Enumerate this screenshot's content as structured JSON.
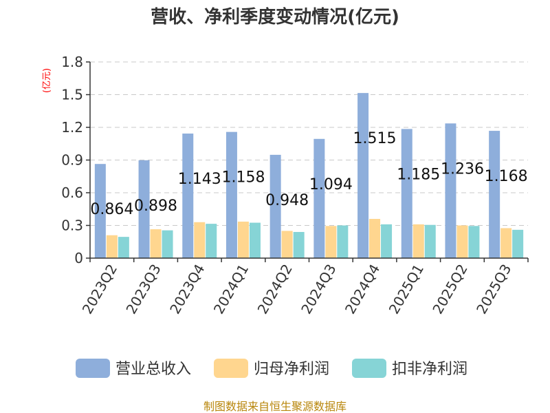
{
  "title": "营收、净利季度变动情况(亿元)",
  "unit": "(亿元)",
  "source": "制图数据来自恒生聚源数据库",
  "chart_data": {
    "type": "bar",
    "title": "营收、净利季度变动情况(亿元)",
    "ylabel": "(亿元)",
    "ylim": [
      0,
      1.8
    ],
    "yticks": [
      "0",
      "0.3",
      "0.6",
      "0.9",
      "1.2",
      "1.5",
      "1.8"
    ],
    "grid": true,
    "legend_position": "bottom",
    "categories": [
      "2023Q2",
      "2023Q3",
      "2023Q4",
      "2024Q1",
      "2024Q2",
      "2024Q3",
      "2024Q4",
      "2025Q1",
      "2025Q2",
      "2025Q3"
    ],
    "series": [
      {
        "name": "营业总收入",
        "color": "#8eaedb",
        "values": [
          0.864,
          0.898,
          1.143,
          1.158,
          0.948,
          1.094,
          1.515,
          1.185,
          1.236,
          1.168
        ]
      },
      {
        "name": "归母净利润",
        "color": "#ffd68f",
        "values": [
          0.21,
          0.265,
          0.33,
          0.335,
          0.25,
          0.295,
          0.36,
          0.31,
          0.3,
          0.275
        ]
      },
      {
        "name": "扣非净利润",
        "color": "#86d4d6",
        "values": [
          0.195,
          0.255,
          0.315,
          0.325,
          0.24,
          0.3,
          0.31,
          0.305,
          0.295,
          0.26
        ]
      }
    ],
    "data_labels": [
      "0.864",
      "0.898",
      "1.143",
      "1.158",
      "0.948",
      "1.094",
      "1.515",
      "1.185",
      "1.236",
      "1.168"
    ]
  }
}
